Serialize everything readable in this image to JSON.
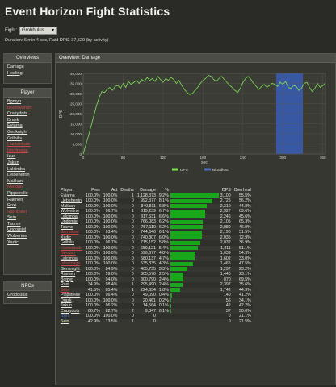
{
  "page": {
    "title": "Event Horizon Fight Statistics",
    "fight_label": "Fight:",
    "fight_value": "Grobbulus",
    "duration": "Duration: 6 min 4 sec, Raid DPS: 37,520 (by activity)"
  },
  "overviews": {
    "title": "Overviews",
    "items": [
      "Damage",
      "Healing"
    ]
  },
  "players": {
    "title": "Player",
    "items": [
      {
        "name": "Bgmyn",
        "color": "#e8e8e0"
      },
      {
        "name": "Boomswrath",
        "color": "#c64a4a"
      },
      {
        "name": "Crazydots",
        "color": "#e8e8e0"
      },
      {
        "name": "Drask",
        "color": "#e8e8e0"
      },
      {
        "name": "Eviarna",
        "color": "#e8e8e0"
      },
      {
        "name": "Genknight",
        "color": "#e8e8e0"
      },
      {
        "name": "Grilbilis",
        "color": "#e8e8e0"
      },
      {
        "name": "Hunterdude",
        "color": "#c64a4a"
      },
      {
        "name": "Ishotmage",
        "color": "#c64a4a"
      },
      {
        "name": "Izuri",
        "color": "#e8e8e0"
      },
      {
        "name": "Jakun",
        "color": "#e8e8e0"
      },
      {
        "name": "Lalcimba",
        "color": "#e8e8e0"
      },
      {
        "name": "Liebeherrin",
        "color": "#e8e8e0"
      },
      {
        "name": "Malikan",
        "color": "#e8e8e0"
      },
      {
        "name": "Nendarr",
        "color": "#c64a4a"
      },
      {
        "name": "Pippstrelle",
        "color": "#e8e8e0"
      },
      {
        "name": "Raenen",
        "color": "#e8e8e0"
      },
      {
        "name": "Roxi",
        "color": "#e8e8e0"
      },
      {
        "name": "Sarrandel",
        "color": "#c64a4a"
      },
      {
        "name": "Sein",
        "color": "#e8e8e0"
      },
      {
        "name": "Taume",
        "color": "#e8e8e0"
      },
      {
        "name": "Undomiel",
        "color": "#e8e8e0"
      },
      {
        "name": "Wolverine",
        "color": "#e8e8e0"
      },
      {
        "name": "Xadic",
        "color": "#e8e8e0"
      }
    ]
  },
  "npcs": {
    "title": "NPCs",
    "items": [
      "Grobbulus"
    ]
  },
  "overview": {
    "title": "Overview: Damage"
  },
  "chart_data": {
    "type": "line",
    "title": "",
    "xlabel": "sec",
    "ylabel": "DPS",
    "xlim": [
      0,
      364
    ],
    "ylim": [
      0,
      40000
    ],
    "xticks": [
      0,
      60,
      120,
      180,
      240,
      300,
      360
    ],
    "yticks": [
      0,
      5000,
      10000,
      15000,
      20000,
      25000,
      30000,
      35000,
      40000
    ],
    "ytick_labels": [
      "0",
      "5,000",
      "10,000",
      "15,000",
      "20,000",
      "25,000",
      "30,000",
      "35,000",
      "40,000"
    ],
    "grid": true,
    "legend": "bottom",
    "bloodlust_region": [
      290,
      330
    ],
    "series": [
      {
        "name": "DPS",
        "color": "#7fe055",
        "x": [
          0,
          4,
          8,
          12,
          16,
          20,
          24,
          28,
          32,
          36,
          40,
          44,
          48,
          52,
          56,
          60,
          64,
          68,
          72,
          76,
          80,
          84,
          88,
          92,
          96,
          100,
          104,
          108,
          112,
          116,
          120,
          124,
          128,
          132,
          136,
          140,
          144,
          148,
          152,
          156,
          160,
          164,
          168,
          172,
          176,
          180,
          184,
          188,
          192,
          196,
          200,
          204,
          208,
          212,
          216,
          220,
          224,
          228,
          232,
          236,
          240,
          244,
          248,
          252,
          256,
          260,
          264,
          268,
          272,
          276,
          280,
          284,
          288,
          292,
          296,
          300,
          304,
          308,
          312,
          316,
          320,
          324,
          328,
          332,
          336,
          340,
          344,
          348,
          352,
          356,
          360,
          364
        ],
        "y": [
          0,
          4500,
          9000,
          14000,
          19000,
          24000,
          28000,
          31000,
          30500,
          32000,
          33000,
          31500,
          33500,
          34000,
          32500,
          35000,
          33000,
          36000,
          34500,
          35500,
          36500,
          35000,
          37000,
          36000,
          38000,
          36500,
          37500,
          36000,
          38500,
          37000,
          35500,
          37500,
          36500,
          38000,
          37000,
          35000,
          36500,
          34000,
          32000,
          30500,
          29500,
          30000,
          31500,
          33000,
          35000,
          36500,
          37500,
          39000,
          38500,
          37000,
          36000,
          37500,
          38500,
          37000,
          35500,
          34000,
          33000,
          31500,
          30500,
          32500,
          35500,
          37500,
          38500,
          37000,
          35000,
          33500,
          32000,
          33500,
          34500,
          33000,
          34000,
          35000,
          34500,
          33500,
          35500,
          34500,
          36000,
          33000,
          32500,
          34000,
          33500,
          31500,
          32500,
          35000,
          35500,
          33000,
          31000,
          32500,
          35000,
          33000,
          34000,
          35000
        ]
      }
    ]
  },
  "legend": {
    "items": [
      {
        "name": "DPS",
        "color": "#7fe055"
      },
      {
        "name": "Bloodlust",
        "color": "#4d6fc2"
      }
    ]
  },
  "table": {
    "headers": [
      "Player",
      "Pres",
      "Act",
      "Deaths",
      "Damage",
      "%",
      "",
      "DPS",
      "Overheal"
    ],
    "rows": [
      {
        "player": "Eviarna",
        "color": "#e8e8e0",
        "pres": "100.0%",
        "act": "100.0%",
        "deaths": "1",
        "damage": "1,128,373",
        "pct": "9.2%",
        "bar": 1.0,
        "dps": "3,100",
        "over": "55.5%"
      },
      {
        "player": "Liebeherrin",
        "color": "#e8e8e0",
        "pres": "100.0%",
        "act": "100.0%",
        "deaths": "0",
        "damage": "992,377",
        "pct": "8.1%",
        "bar": 0.88,
        "dps": "2,725",
        "over": "56.2%"
      },
      {
        "player": "Malikan",
        "color": "#e8e8e0",
        "pres": "100.0%",
        "act": "100.0%",
        "deaths": "0",
        "damage": "840,811",
        "pct": "6.8%",
        "bar": 0.75,
        "dps": "2,310",
        "over": "44.8%"
      },
      {
        "player": "Wolverine",
        "color": "#e8e8e0",
        "pres": "100.0%",
        "act": "96.7%",
        "deaths": "1",
        "damage": "819,239",
        "pct": "6.7%",
        "bar": 0.73,
        "dps": "2,327",
        "over": "69.6%"
      },
      {
        "player": "Lalcimba",
        "color": "#e8e8e0",
        "pres": "100.0%",
        "act": "100.0%",
        "deaths": "0",
        "damage": "817,631",
        "pct": "6.6%",
        "bar": 0.72,
        "dps": "2,246",
        "over": "45.6%"
      },
      {
        "player": "Undomiel",
        "color": "#e8e8e0",
        "pres": "100.0%",
        "act": "100.0%",
        "deaths": "0",
        "damage": "766,083",
        "pct": "6.2%",
        "bar": 0.68,
        "dps": "2,105",
        "over": "65.3%"
      },
      {
        "player": "Taume",
        "color": "#e8e8e0",
        "pres": "100.0%",
        "act": "100.0%",
        "deaths": "0",
        "damage": "757,110",
        "pct": "6.2%",
        "bar": 0.67,
        "dps": "2,080",
        "over": "46.9%"
      },
      {
        "player": "Sarrandel",
        "color": "#c64a4a",
        "pres": "100.0%",
        "act": "93.4%",
        "deaths": "0",
        "damage": "744,646",
        "pct": "6.1%",
        "bar": 0.66,
        "dps": "2,190",
        "over": "51.5%"
      },
      {
        "player": "Xadic",
        "color": "#e8e8e0",
        "pres": "100.0%",
        "act": "100.0%",
        "deaths": "0",
        "damage": "740,807",
        "pct": "6.0%",
        "bar": 0.66,
        "dps": "2,035",
        "over": "72.9%"
      },
      {
        "player": "Grilbilis",
        "color": "#e8e8e0",
        "pres": "100.0%",
        "act": "96.7%",
        "deaths": "0",
        "damage": "715,152",
        "pct": "5.8%",
        "bar": 0.63,
        "dps": "2,032",
        "over": "36.9%"
      },
      {
        "player": "Hunterdude",
        "color": "#c64a4a",
        "pres": "100.0%",
        "act": "100.0%",
        "deaths": "0",
        "damage": "659,121",
        "pct": "5.4%",
        "bar": 0.58,
        "dps": "1,811",
        "over": "51.1%"
      },
      {
        "player": "Nendarr",
        "color": "#c64a4a",
        "pres": "100.0%",
        "act": "100.0%",
        "deaths": "0",
        "damage": "596,677",
        "pct": "4.8%",
        "bar": 0.53,
        "dps": "1,639",
        "over": "54.3%"
      },
      {
        "player": "Lalcimba",
        "color": "#e8e8e0",
        "pres": "100.0%",
        "act": "100.0%",
        "deaths": "0",
        "damage": "580,137",
        "pct": "4.7%",
        "bar": 0.51,
        "dps": "1,602",
        "over": "33.0%"
      },
      {
        "player": "Ishotmage",
        "color": "#c64a4a",
        "pres": "100.0%",
        "act": "100.0%",
        "deaths": "0",
        "damage": "535,335",
        "pct": "4.3%",
        "bar": 0.47,
        "dps": "1,465",
        "over": "47.5%"
      },
      {
        "player": "Genknight",
        "color": "#e8e8e0",
        "pres": "100.0%",
        "act": "84.9%",
        "deaths": "0",
        "damage": "405,735",
        "pct": "3.3%",
        "bar": 0.36,
        "dps": "1,297",
        "over": "23.2%"
      },
      {
        "player": "Raenen",
        "color": "#e8e8e0",
        "pres": "100.0%",
        "act": "59.0%",
        "deaths": "0",
        "damage": "305,576",
        "pct": "2.5%",
        "bar": 0.27,
        "dps": "1,440",
        "over": "23.1%"
      },
      {
        "player": "Bgmyn",
        "color": "#e8e8e0",
        "pres": "100.0%",
        "act": "94.0%",
        "deaths": "0",
        "damage": "300,790",
        "pct": "2.4%",
        "bar": 0.27,
        "dps": "870",
        "over": "69.5%"
      },
      {
        "player": "Roxi",
        "color": "#e8e8e0",
        "pres": "34.9%",
        "act": "98.4%",
        "deaths": "1",
        "damage": "295,490",
        "pct": "2.4%",
        "bar": 0.26,
        "dps": "2,397",
        "over": "35.6%"
      },
      {
        "player": "Sein",
        "color": "#c64a4a",
        "pres": "41.5%",
        "act": "85.4%",
        "deaths": "1",
        "damage": "224,654",
        "pct": "1.8%",
        "bar": 0.2,
        "dps": "1,742",
        "over": "44.9%"
      },
      {
        "player": "Pippstrelle",
        "color": "#e8e8e0",
        "pres": "100.0%",
        "act": "96.4%",
        "deaths": "0",
        "damage": "49,090",
        "pct": "0.4%",
        "bar": 0.04,
        "dps": "140",
        "over": "41.2%"
      },
      {
        "player": "Drask",
        "color": "#e8e8e0",
        "pres": "100.0%",
        "act": "100.0%",
        "deaths": "0",
        "damage": "20,461",
        "pct": "0.2%",
        "bar": 0.02,
        "dps": "56",
        "over": "34.1%"
      },
      {
        "player": "Jakun",
        "color": "#e8e8e0",
        "pres": "100.0%",
        "act": "96.2%",
        "deaths": "0",
        "damage": "14,564",
        "pct": "0.1%",
        "bar": 0.01,
        "dps": "42",
        "over": "42.2%"
      },
      {
        "player": "Crazydots",
        "color": "#e8e8e0",
        "pres": "86.7%",
        "act": "82.7%",
        "deaths": "2",
        "damage": "9,847",
        "pct": "0.1%",
        "bar": 0.01,
        "dps": "37",
        "over": "50.0%"
      },
      {
        "player": "Izuri",
        "color": "#4d6fc2",
        "pres": "100.0%",
        "act": "100.0%",
        "deaths": "0",
        "damage": "0",
        "pct": "",
        "bar": 0,
        "dps": "0",
        "over": "21.1%"
      },
      {
        "player": "Sein",
        "color": "#e8e8e0",
        "pres": "42.9%",
        "act": "13.5%",
        "deaths": "1",
        "damage": "0",
        "pct": "",
        "bar": 0,
        "dps": "0",
        "over": "21.5%"
      }
    ]
  }
}
